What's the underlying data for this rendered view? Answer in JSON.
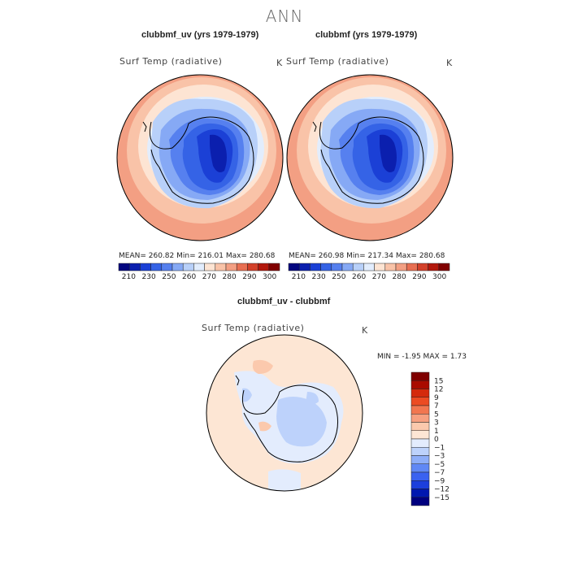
{
  "title": "ANN",
  "colors": {
    "abs_scale": [
      "#03067f",
      "#0b1fae",
      "#1b40d6",
      "#3563e6",
      "#5680ef",
      "#86a9f5",
      "#b8d0f9",
      "#e2edfd",
      "#fde4d3",
      "#f9c3a8",
      "#f39f83",
      "#e86f52",
      "#d3412a",
      "#b3180c",
      "#800000"
    ],
    "diff_scale": [
      "#00007f",
      "#0018b0",
      "#1c3fdc",
      "#3a62f0",
      "#6088f5",
      "#8eaef8",
      "#bdd2fb",
      "#e3ecfd",
      "#fde6d4",
      "#fbc9ad",
      "#f7a080",
      "#f2764f",
      "#ec4b22",
      "#d42a0c",
      "#a90b00",
      "#7f0000"
    ],
    "coast": "#000000"
  },
  "panels": [
    {
      "title": "clubbmf_uv (yrs 1979-1979)",
      "variable": "Surf Temp (radiative)",
      "unit": "K",
      "stats": "MEAN=  260.82    Min=  216.01    Max=  280.68"
    },
    {
      "title": "clubbmf (yrs 1979-1979)",
      "variable": "Surf Temp (radiative)",
      "unit": "K",
      "stats": "MEAN=  260.98    Min=  217.34    Max=  280.68"
    }
  ],
  "abs_colorbar": {
    "labels": [
      "210",
      "230",
      "250",
      "260",
      "270",
      "280",
      "290",
      "300"
    ]
  },
  "diff_panel": {
    "title": "clubbmf_uv - clubbmf",
    "variable": "Surf Temp (radiative)",
    "unit": "K",
    "stats": "MIN =   -1.95  MAX =    1.73",
    "colorbar_labels": [
      "15",
      "12",
      "9",
      "7",
      "5",
      "3",
      "1",
      "0",
      "−1",
      "−3",
      "−5",
      "−7",
      "−9",
      "−12",
      "−15"
    ]
  }
}
